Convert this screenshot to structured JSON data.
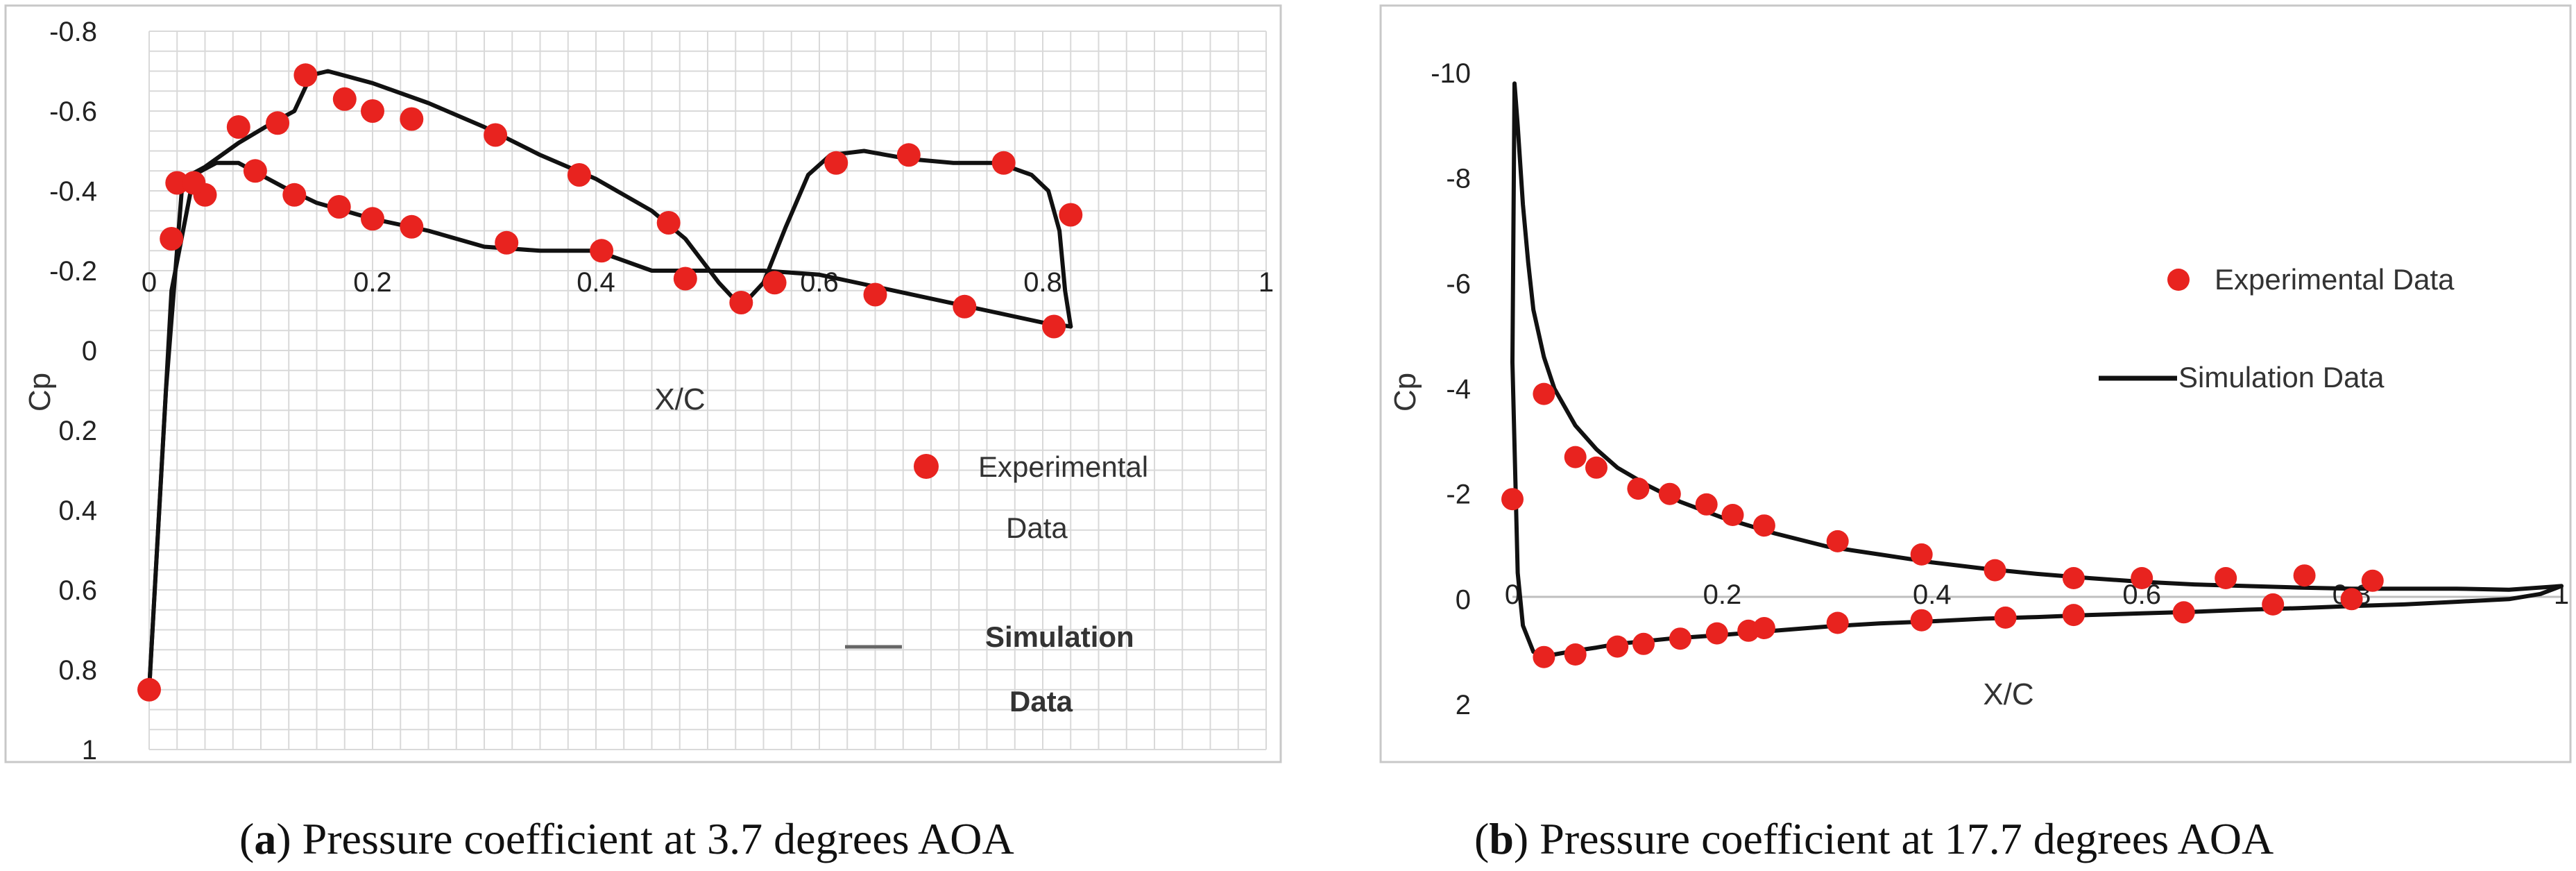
{
  "colors": {
    "experimental": "#e8231f",
    "simulation": "#111111",
    "grid": "#d9d9d9",
    "background": "#ffffff"
  },
  "chart_data": [
    {
      "type": "scatter",
      "panel": "a",
      "caption_letter": "a",
      "caption_text": "Pressure coefficient at 3.7 degrees AOA",
      "xlabel": "X/C",
      "ylabel": "Cp",
      "xlim": [
        0,
        1
      ],
      "ylim": [
        1,
        -0.8
      ],
      "y_inverted": true,
      "x_ticks": [
        "0",
        "0.2",
        "0.4",
        "0.6",
        "0.8",
        "1"
      ],
      "x_tick_values": [
        0,
        0.2,
        0.4,
        0.6,
        0.8,
        1
      ],
      "y_ticks": [
        "-0.8",
        "-0.6",
        "-0.4",
        "-0.2",
        "0",
        "0.2",
        "0.4",
        "0.6",
        "0.8",
        "1"
      ],
      "y_tick_values": [
        -0.8,
        -0.6,
        -0.4,
        -0.2,
        0,
        0.2,
        0.4,
        0.6,
        0.8,
        1
      ],
      "grid": true,
      "legend_position": "lower-right",
      "series": [
        {
          "name": "Experimental Data",
          "kind": "markers",
          "x": [
            0.0,
            0.02,
            0.025,
            0.05,
            0.04,
            0.08,
            0.095,
            0.115,
            0.14,
            0.13,
            0.175,
            0.17,
            0.2,
            0.2,
            0.235,
            0.235,
            0.31,
            0.32,
            0.385,
            0.405,
            0.465,
            0.48,
            0.53,
            0.56,
            0.615,
            0.65,
            0.68,
            0.73,
            0.765,
            0.81,
            0.825
          ],
          "y": [
            0.85,
            -0.28,
            -0.42,
            -0.39,
            -0.42,
            -0.56,
            -0.45,
            -0.57,
            -0.69,
            -0.39,
            -0.63,
            -0.36,
            -0.6,
            -0.33,
            -0.58,
            -0.31,
            -0.54,
            -0.27,
            -0.44,
            -0.25,
            -0.32,
            -0.18,
            -0.12,
            -0.17,
            -0.47,
            -0.14,
            -0.49,
            -0.11,
            -0.47,
            -0.06,
            -0.34
          ]
        },
        {
          "name": "Simulation Data",
          "kind": "line",
          "upper": {
            "x": [
              0.0,
              0.015,
              0.03,
              0.05,
              0.08,
              0.11,
              0.13,
              0.145,
              0.16,
              0.2,
              0.25,
              0.3,
              0.35,
              0.4,
              0.45,
              0.48,
              0.51,
              0.53,
              0.55,
              0.57,
              0.59,
              0.61,
              0.64,
              0.68,
              0.72,
              0.76,
              0.79,
              0.805,
              0.815,
              0.82,
              0.825
            ],
            "y": [
              0.85,
              0.1,
              -0.43,
              -0.46,
              -0.52,
              -0.57,
              -0.6,
              -0.69,
              -0.7,
              -0.67,
              -0.62,
              -0.56,
              -0.49,
              -0.43,
              -0.35,
              -0.28,
              -0.17,
              -0.11,
              -0.17,
              -0.31,
              -0.44,
              -0.49,
              -0.5,
              -0.48,
              -0.47,
              -0.47,
              -0.44,
              -0.4,
              -0.3,
              -0.15,
              -0.06
            ]
          },
          "lower": {
            "x": [
              0.0,
              0.02,
              0.04,
              0.06,
              0.08,
              0.1,
              0.12,
              0.15,
              0.2,
              0.25,
              0.3,
              0.35,
              0.4,
              0.45,
              0.5,
              0.55,
              0.6,
              0.65,
              0.7,
              0.75,
              0.8,
              0.825
            ],
            "y": [
              0.85,
              -0.15,
              -0.44,
              -0.47,
              -0.47,
              -0.44,
              -0.41,
              -0.37,
              -0.33,
              -0.3,
              -0.26,
              -0.25,
              -0.25,
              -0.2,
              -0.2,
              -0.2,
              -0.19,
              -0.16,
              -0.13,
              -0.1,
              -0.07,
              -0.06
            ]
          }
        }
      ],
      "legend": {
        "experimental_line1": "Experimental",
        "experimental_line2": "Data",
        "simulation_line1": "Simulation",
        "simulation_line2": "Data"
      }
    },
    {
      "type": "scatter",
      "panel": "b",
      "caption_letter": "b",
      "caption_text": "Pressure coefficient at 17.7 degrees AOA",
      "xlabel": "X/C",
      "ylabel": "Cp",
      "xlim": [
        0,
        1
      ],
      "ylim": [
        2,
        -10
      ],
      "y_inverted": true,
      "x_ticks": [
        "0",
        "0.2",
        "0.4",
        "0.6",
        "0.8",
        "1"
      ],
      "x_tick_values": [
        0,
        0.2,
        0.4,
        0.6,
        0.8,
        1
      ],
      "y_ticks": [
        "-10",
        "-8",
        "-6",
        "-4",
        "-2",
        "0",
        "2"
      ],
      "y_tick_values": [
        -10,
        -8,
        -6,
        -4,
        -2,
        0,
        2
      ],
      "grid": false,
      "legend_position": "right",
      "series": [
        {
          "name": "Experimental Data",
          "kind": "markers",
          "x": [
            0.0,
            0.03,
            0.03,
            0.06,
            0.06,
            0.08,
            0.1,
            0.12,
            0.125,
            0.15,
            0.16,
            0.185,
            0.195,
            0.21,
            0.225,
            0.24,
            0.24,
            0.31,
            0.31,
            0.39,
            0.39,
            0.46,
            0.47,
            0.535,
            0.535,
            0.6,
            0.64,
            0.68,
            0.725,
            0.755,
            0.8,
            0.82
          ],
          "y": [
            -1.9,
            -3.9,
            1.1,
            -2.7,
            1.05,
            -2.5,
            0.9,
            -2.1,
            0.85,
            -2.0,
            0.75,
            -1.8,
            0.65,
            -1.6,
            0.6,
            -1.4,
            0.55,
            -1.1,
            0.45,
            -0.85,
            0.4,
            -0.55,
            0.35,
            -0.4,
            0.3,
            -0.4,
            0.25,
            -0.4,
            0.1,
            -0.45,
            0.0,
            -0.35
          ]
        },
        {
          "name": "Simulation Data",
          "kind": "line",
          "upper": {
            "x": [
              0.0,
              0.002,
              0.005,
              0.01,
              0.015,
              0.02,
              0.03,
              0.04,
              0.06,
              0.08,
              0.1,
              0.13,
              0.16,
              0.2,
              0.25,
              0.3,
              0.35,
              0.4,
              0.45,
              0.5,
              0.55,
              0.6,
              0.65,
              0.7,
              0.75,
              0.8,
              0.85,
              0.9,
              0.95,
              1.0
            ],
            "y": [
              -4.5,
              -9.8,
              -9.0,
              -7.5,
              -6.4,
              -5.5,
              -4.6,
              -4.0,
              -3.3,
              -2.85,
              -2.5,
              -2.15,
              -1.85,
              -1.55,
              -1.25,
              -1.0,
              -0.85,
              -0.7,
              -0.58,
              -0.48,
              -0.4,
              -0.33,
              -0.28,
              -0.25,
              -0.22,
              -0.2,
              -0.2,
              -0.2,
              -0.18,
              -0.25
            ]
          },
          "lower": {
            "x": [
              0.0,
              0.005,
              0.01,
              0.02,
              0.04,
              0.06,
              0.08,
              0.1,
              0.15,
              0.2,
              0.25,
              0.3,
              0.35,
              0.4,
              0.45,
              0.5,
              0.55,
              0.6,
              0.65,
              0.7,
              0.75,
              0.8,
              0.85,
              0.9,
              0.95,
              0.98,
              1.0
            ],
            "y": [
              -4.5,
              -0.5,
              0.5,
              1.0,
              1.05,
              0.98,
              0.92,
              0.85,
              0.75,
              0.68,
              0.6,
              0.52,
              0.46,
              0.42,
              0.37,
              0.34,
              0.3,
              0.27,
              0.24,
              0.2,
              0.17,
              0.13,
              0.1,
              0.05,
              0.0,
              -0.1,
              -0.25
            ]
          }
        }
      ],
      "legend": {
        "experimental": "Experimental Data",
        "simulation": "Simulation Data"
      }
    }
  ]
}
